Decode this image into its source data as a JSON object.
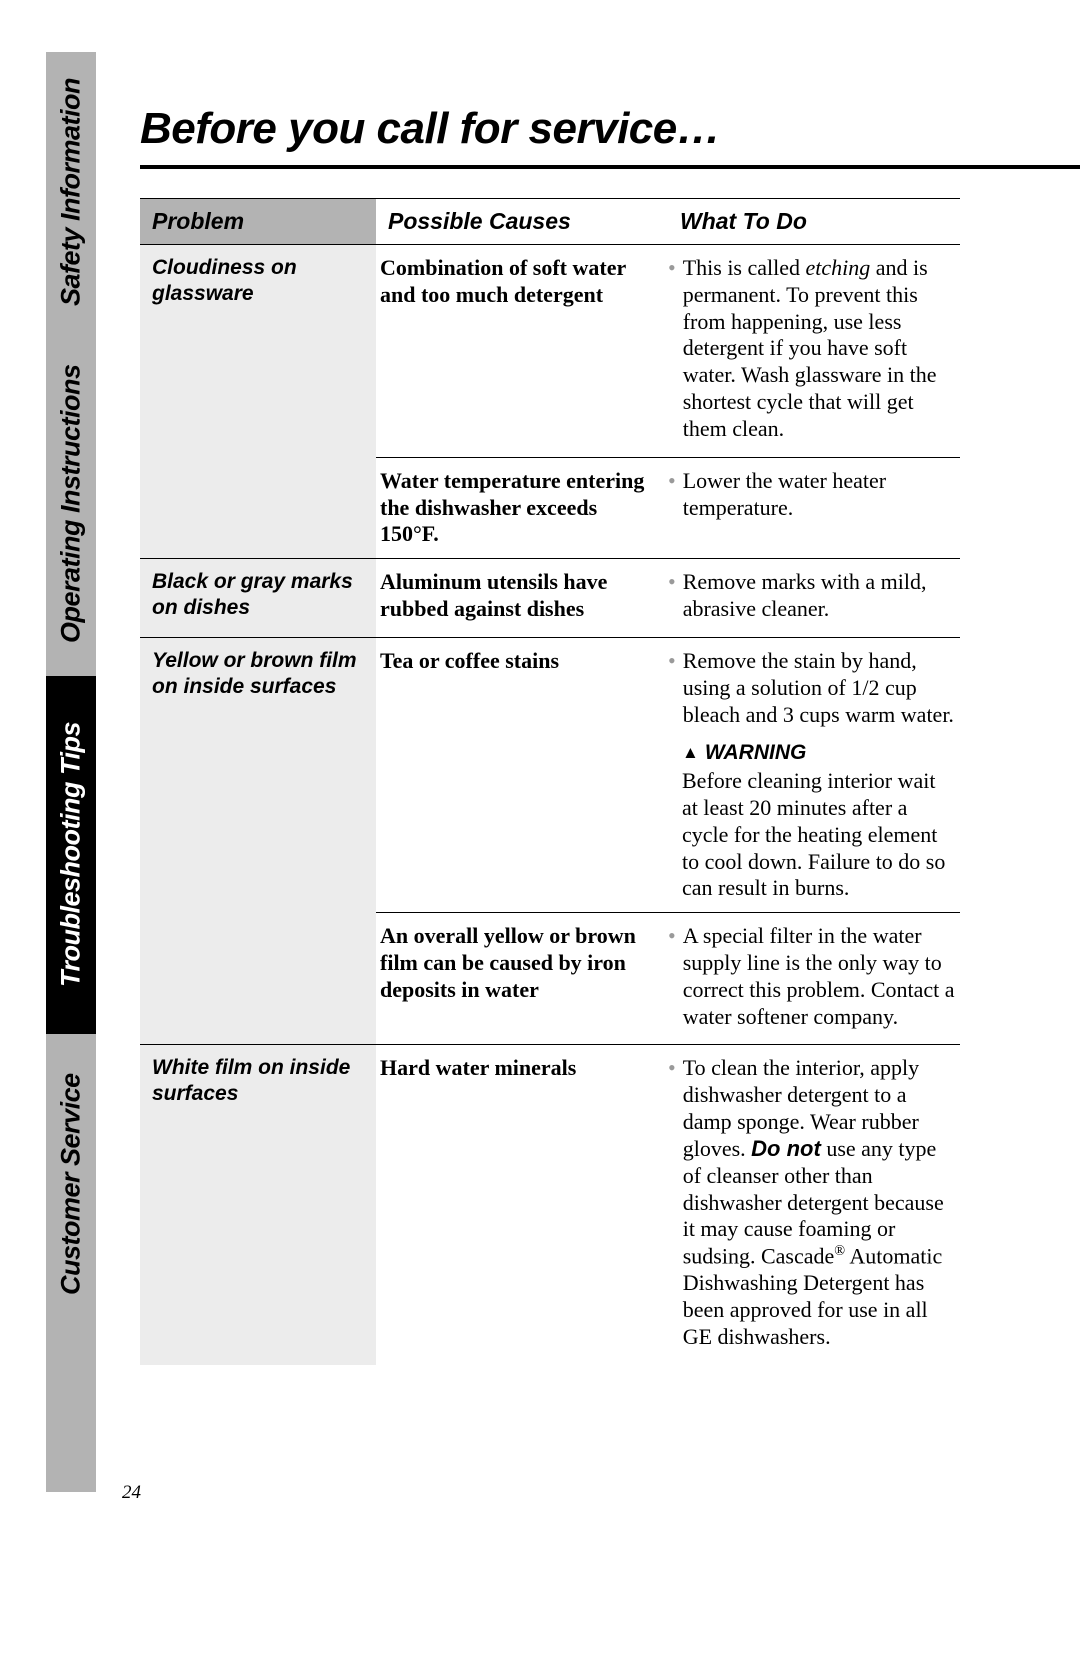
{
  "page_number": "24",
  "title": "Before you call for service…",
  "sidebar": {
    "safety": "Safety Information",
    "operating": "Operating Instructions",
    "trouble": "Troubleshooting Tips",
    "customer": "Customer Service"
  },
  "columns": {
    "problem": "Problem",
    "causes": "Possible Causes",
    "todo": "What To Do"
  },
  "rows": [
    {
      "problem": "Cloudiness on glassware",
      "subs": [
        {
          "cause": "Combination of soft water and too much detergent",
          "todo_items": [
            {
              "prefix": "This is called ",
              "em": "etching",
              "suffix": " and is permanent. To prevent this from happening, use less detergent if you have soft water. Wash glassware in the shortest cycle that will get them clean."
            }
          ]
        },
        {
          "cause": "Water temperature entering the dishwasher exceeds 150°F.",
          "todo_items": [
            {
              "text": "Lower the water heater temperature."
            }
          ]
        }
      ]
    },
    {
      "problem": "Black or gray marks on dishes",
      "subs": [
        {
          "cause": "Aluminum utensils have rubbed against dishes",
          "todo_items": [
            {
              "text": "Remove marks with a mild, abrasive cleaner."
            }
          ]
        }
      ]
    },
    {
      "problem": "Yellow or brown film on inside surfaces",
      "subs": [
        {
          "cause": "Tea or coffee stains",
          "todo_items": [
            {
              "text": "Remove the stain by hand, using a solution of 1/2 cup bleach and 3 cups warm water."
            }
          ],
          "warning_label": "WARNING",
          "warning_body": "Before cleaning interior wait at least 20 minutes after a cycle for the heating element to cool down. Failure to do so can result in burns."
        },
        {
          "cause": "An overall yellow or brown film can be caused by iron deposits in water",
          "todo_items": [
            {
              "text": "A special filter in the water supply line is the only way to correct this problem. Contact a water softener company."
            }
          ]
        }
      ]
    },
    {
      "problem": "White film on inside surfaces",
      "subs": [
        {
          "cause": "Hard water minerals",
          "todo_items": [
            {
              "prefix": "To clean the interior, apply dishwasher detergent to a damp sponge. Wear rubber gloves. ",
              "bold": "Do not",
              "suffix": " use any type of cleanser other than dishwasher detergent because it may cause foaming or sudsing. Cascade",
              "sup": "®",
              "tail": " Automatic Dishwashing Detergent has been approved for use in all GE dishwashers."
            }
          ]
        }
      ]
    }
  ],
  "colors": {
    "gray_tab": "#b3b3b3",
    "black_tab": "#000000",
    "cell_gray": "#ececec",
    "bullet": "#9a9a9a"
  },
  "fontsizes": {
    "title": 44,
    "tab": 27,
    "th": 23,
    "body": 22,
    "problem": 21
  }
}
